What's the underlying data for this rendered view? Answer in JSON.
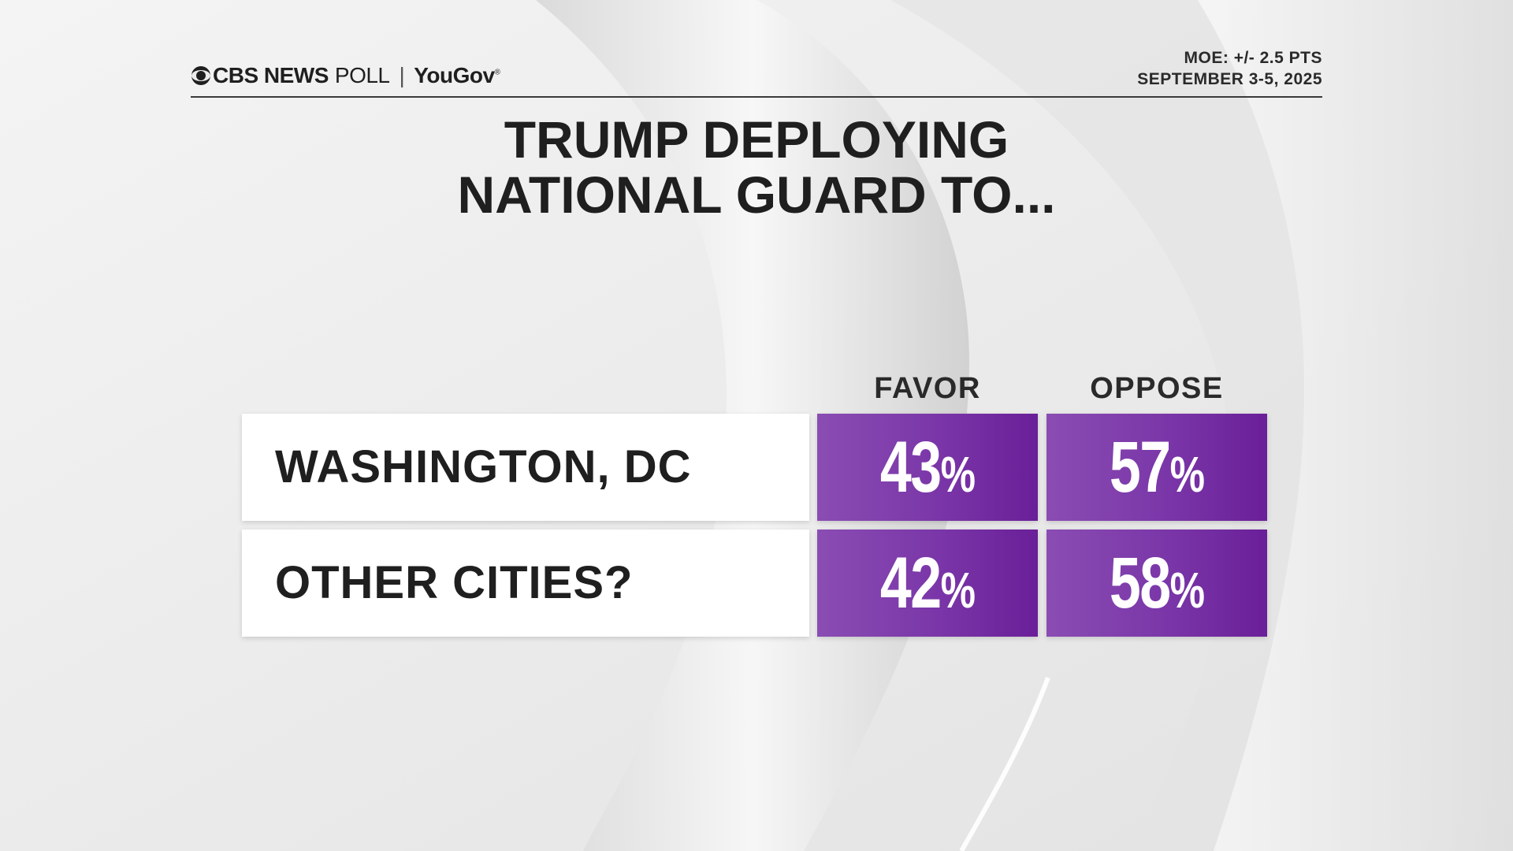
{
  "header": {
    "brand_cbs": "CBS NEWS",
    "brand_poll": "POLL",
    "separator": "|",
    "brand_partner": "YouGov",
    "partner_mark": "®",
    "moe": "MOE: +/- 2.5 PTS",
    "dates": "SEPTEMBER 3-5, 2025"
  },
  "colors": {
    "accent_purple": "#7a36a8",
    "text_dark": "#1f1f1f",
    "label_bg": "#ffffff"
  },
  "chart_data": {
    "type": "table",
    "title_line1": "TRUMP DEPLOYING",
    "title_line2": "NATIONAL GUARD TO...",
    "columns": [
      "FAVOR",
      "OPPOSE"
    ],
    "unit": "%",
    "rows": [
      {
        "label": "WASHINGTON, DC",
        "values": [
          43,
          57
        ]
      },
      {
        "label": "OTHER CITIES?",
        "values": [
          42,
          58
        ]
      }
    ]
  }
}
